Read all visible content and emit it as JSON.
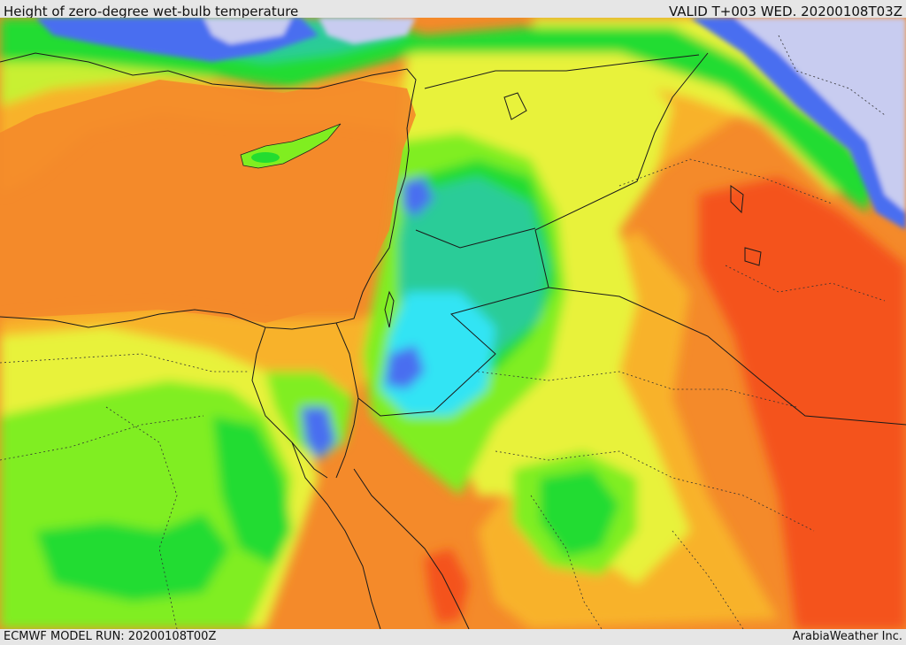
{
  "header": {
    "title": "Height of zero-degree wet-bulb temperature",
    "valid": "VALID T+003 WED. 20200108T03Z"
  },
  "footer": {
    "model_run": "ECMWF MODEL RUN: 20200108T00Z",
    "credit": "ArabiaWeather Inc."
  },
  "colors": {
    "pale_lavender": "#c8ccf0",
    "blue": "#4a6ef0",
    "cyan": "#30e4f4",
    "teal": "#2ccc98",
    "green": "#22dc30",
    "light_green": "#80ee20",
    "yellow_green": "#c8f030",
    "yellow": "#e8f23a",
    "light_orange": "#f8b22a",
    "orange": "#f48a2a",
    "red_orange": "#f4531c"
  }
}
